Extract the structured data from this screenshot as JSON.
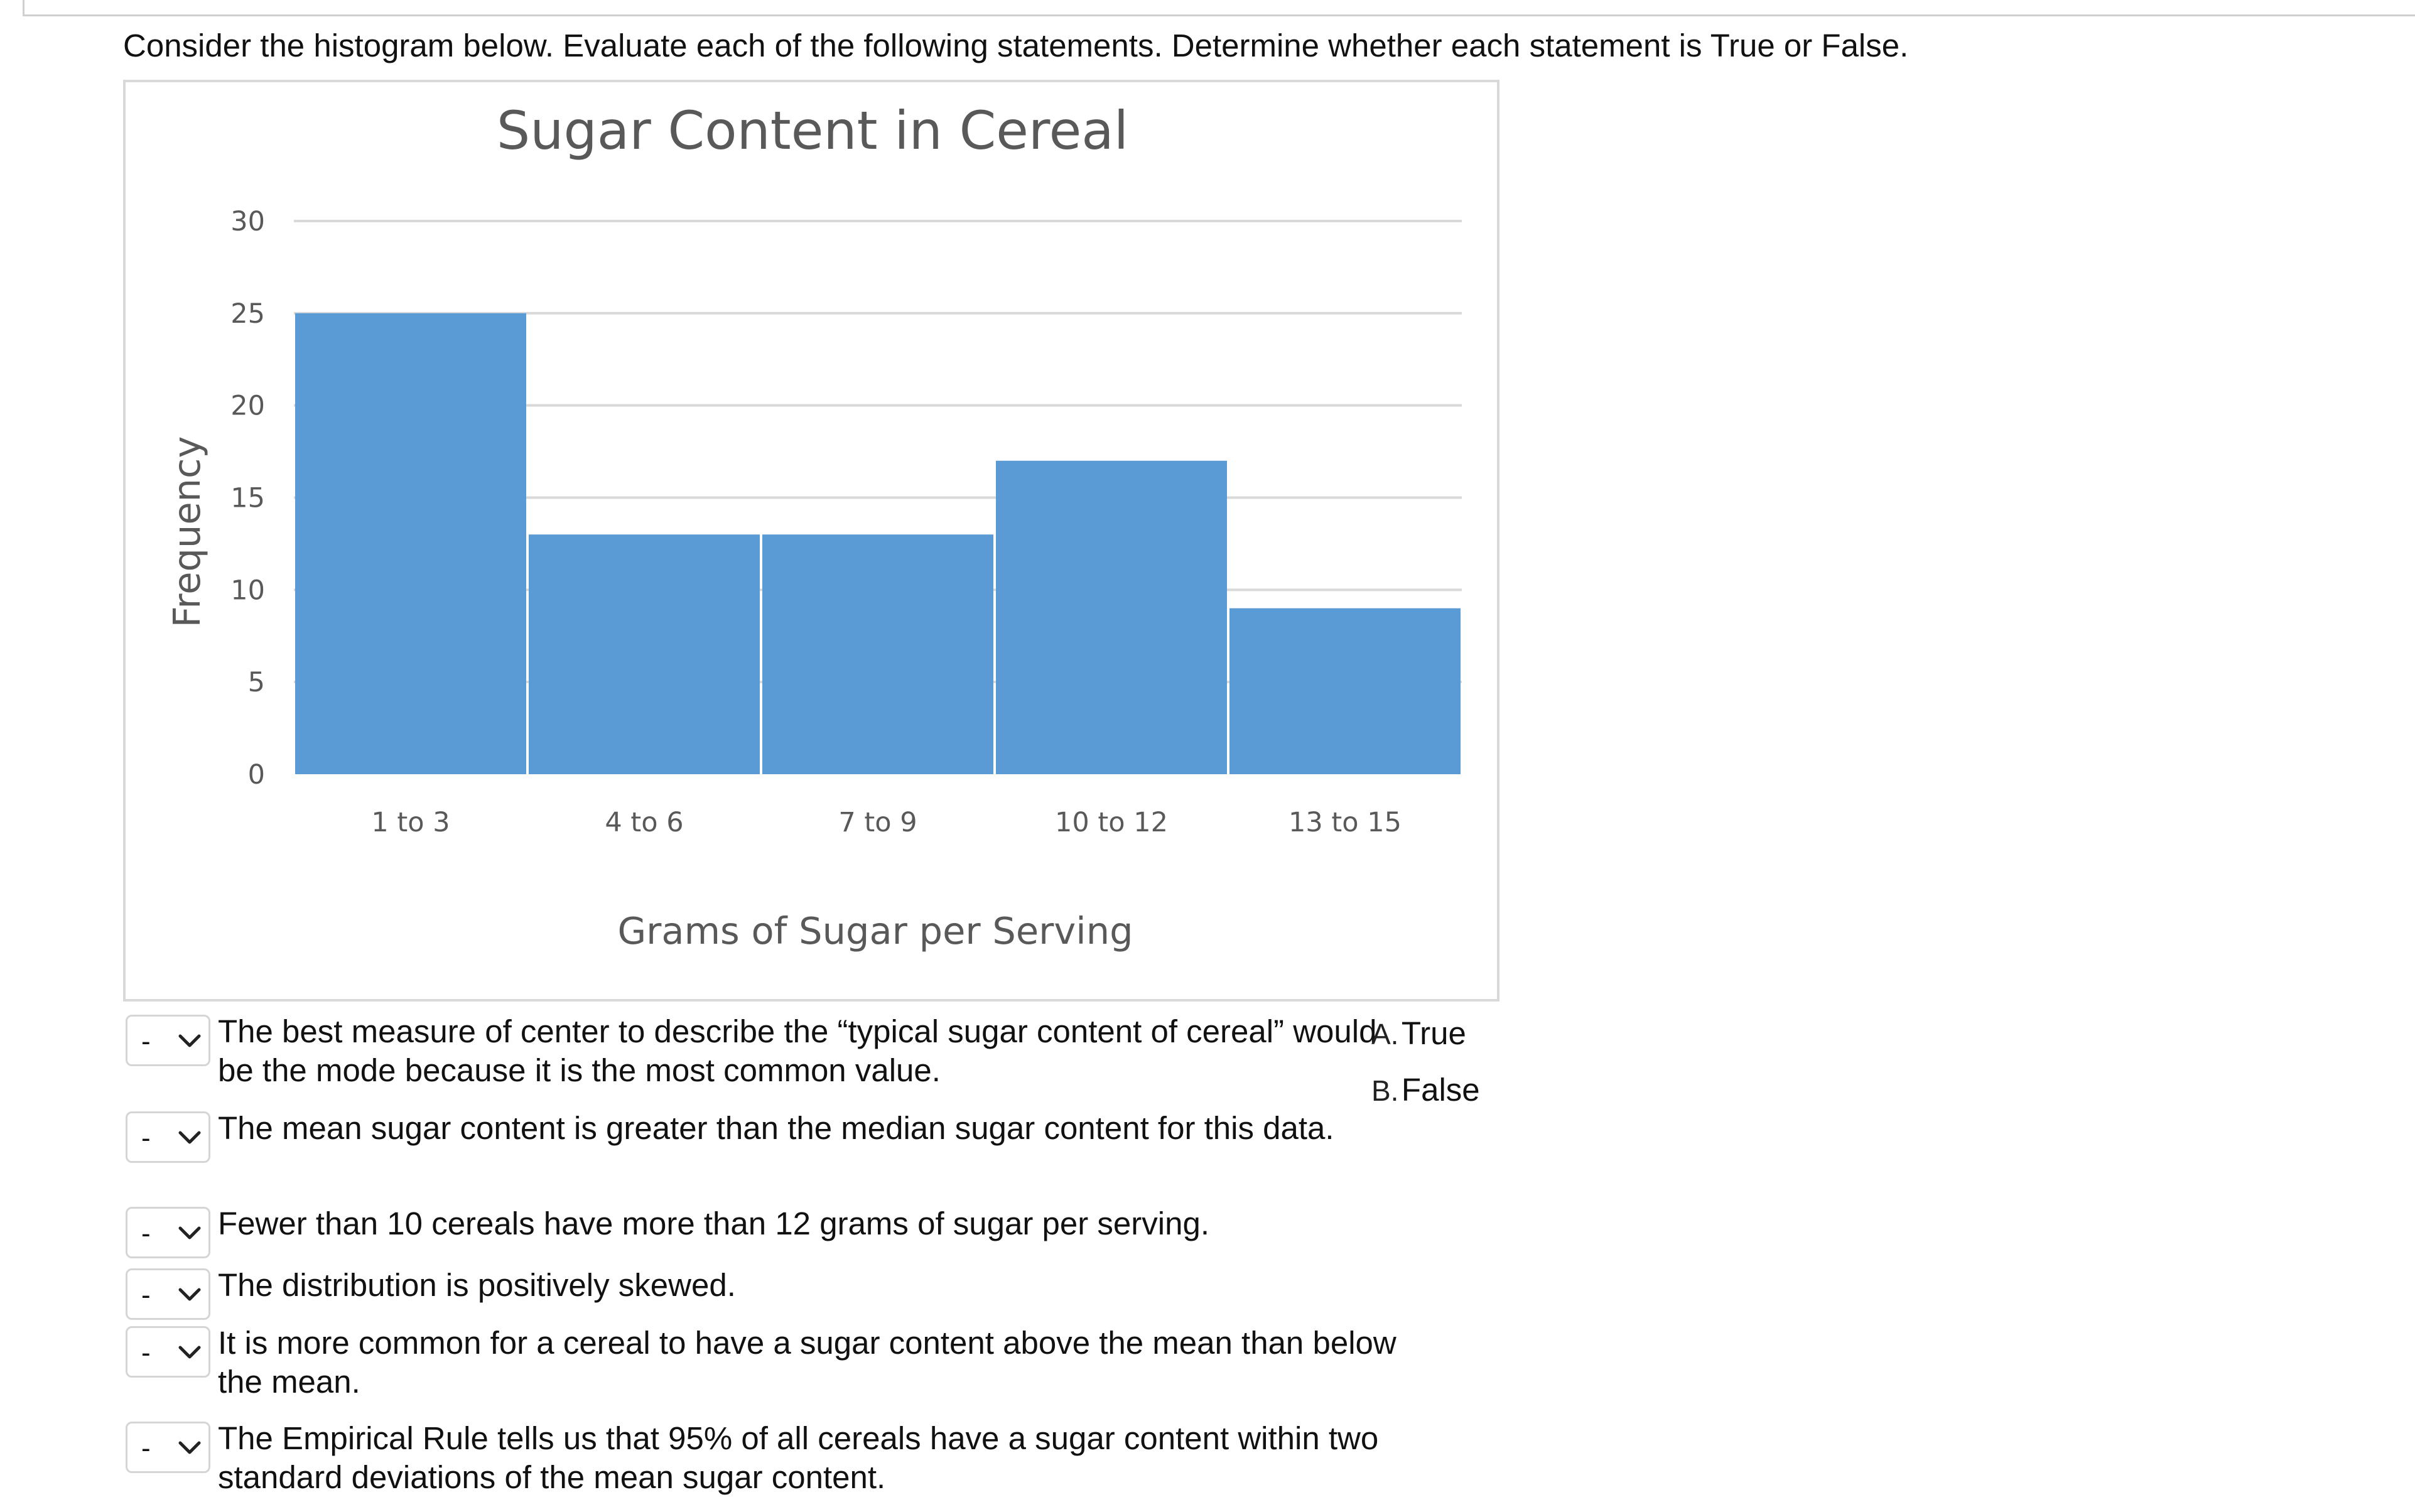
{
  "instructions": "Consider the histogram below. Evaluate each of the following statements. Determine whether each statement is True or False.",
  "chart_data": {
    "type": "bar",
    "title": "Sugar Content in Cereal",
    "xlabel": "Grams of Sugar per Serving",
    "ylabel": "Frequency",
    "categories": [
      "1 to 3",
      "4 to 6",
      "7 to 9",
      "10 to 12",
      "13 to 15"
    ],
    "values": [
      25,
      13,
      13,
      17,
      9
    ],
    "ylim": [
      0,
      30
    ],
    "yticks": [
      "0",
      "5",
      "10",
      "15",
      "20",
      "25",
      "30"
    ],
    "grid": true,
    "bar_color": "#5b9bd5",
    "gridline_color": "#d9d9d9"
  },
  "statements": [
    {
      "selected": "-",
      "text": "The best measure of center to describe the “typical sugar content of cereal” would be the mode because it is the most common value."
    },
    {
      "selected": "-",
      "text": "The mean sugar content is greater than the median sugar content for this data."
    },
    {
      "selected": "-",
      "text": "Fewer than 10 cereals have more than 12 grams of sugar per serving."
    },
    {
      "selected": "-",
      "text": "The distribution is positively skewed."
    },
    {
      "selected": "-",
      "text": "It is more common for a cereal to have a sugar content above the mean than below the mean."
    },
    {
      "selected": "-",
      "text": "The Empirical Rule tells us that 95% of all cereals have a sugar content within two standard deviations of the mean sugar content."
    }
  ],
  "answer_options": [
    {
      "letter": "A.",
      "text": "True"
    },
    {
      "letter": "B.",
      "text": "False"
    }
  ],
  "icons": {
    "dropdown": "chevron-down-icon"
  }
}
